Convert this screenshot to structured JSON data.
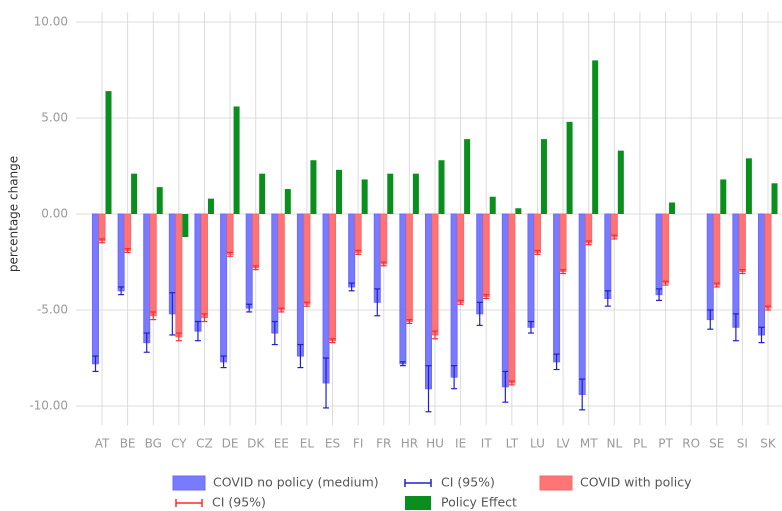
{
  "chart_data": {
    "type": "bar",
    "y_label": "percentage change",
    "categories": [
      "AT",
      "BE",
      "BG",
      "CY",
      "CZ",
      "DE",
      "DK",
      "EE",
      "EL",
      "ES",
      "FI",
      "FR",
      "HR",
      "HU",
      "IE",
      "IT",
      "LT",
      "LU",
      "LV",
      "MT",
      "NL",
      "PL",
      "PT",
      "RO",
      "SE",
      "SI",
      "SK"
    ],
    "series": [
      {
        "name": "COVID no policy (medium)",
        "color": "#6b6bff",
        "values": [
          -7.8,
          -4.0,
          -6.7,
          -5.2,
          -6.1,
          -7.7,
          -4.9,
          -6.2,
          -7.4,
          -8.8,
          -3.8,
          -4.6,
          -7.8,
          -9.1,
          -8.5,
          -5.2,
          -9.0,
          -5.9,
          -7.7,
          -9.4,
          -4.4,
          null,
          -4.2,
          null,
          -5.5,
          -5.9,
          -6.3
        ],
        "error_bars": {
          "name": "CI (95%)",
          "color": "#2020d0",
          "values": [
            0.4,
            0.2,
            0.5,
            1.1,
            0.5,
            0.3,
            0.2,
            0.6,
            0.6,
            1.3,
            0.2,
            0.7,
            0.1,
            1.2,
            0.6,
            0.6,
            0.8,
            0.3,
            0.4,
            0.8,
            0.4,
            null,
            0.3,
            null,
            0.5,
            0.7,
            0.4
          ]
        }
      },
      {
        "name": "COVID with policy",
        "color": "#ff6666",
        "values": [
          -1.4,
          -1.9,
          -5.3,
          -6.4,
          -5.4,
          -2.1,
          -2.8,
          -5.0,
          -4.7,
          -6.6,
          -2.0,
          -2.6,
          -5.6,
          -6.3,
          -4.6,
          -4.3,
          -8.8,
          -2.0,
          -3.0,
          -1.5,
          -1.2,
          null,
          -3.6,
          null,
          -3.7,
          -3.0,
          -4.9
        ],
        "error_bars": {
          "name": "CI (95%)",
          "color": "#ff2a2a",
          "values": [
            0.1,
            0.1,
            0.2,
            0.2,
            0.2,
            0.1,
            0.1,
            0.1,
            0.1,
            0.1,
            0.1,
            0.1,
            0.1,
            0.2,
            0.1,
            0.1,
            0.1,
            0.1,
            0.1,
            0.1,
            0.1,
            null,
            0.1,
            null,
            0.1,
            0.1,
            0.1
          ]
        }
      },
      {
        "name": "Policy Effect",
        "color": "#0a8f1e",
        "values": [
          6.4,
          2.1,
          1.4,
          -1.2,
          0.8,
          5.6,
          2.1,
          1.3,
          2.8,
          2.3,
          1.8,
          2.1,
          2.1,
          2.8,
          3.9,
          0.9,
          0.3,
          3.9,
          4.8,
          8.0,
          3.3,
          null,
          0.6,
          null,
          1.8,
          2.9,
          1.6
        ]
      }
    ],
    "ylim": [
      -11,
      10.5
    ],
    "yticks": [
      {
        "value": 10,
        "label": "10.00"
      },
      {
        "value": 5,
        "label": "5.00"
      },
      {
        "value": 0,
        "label": "0.00"
      },
      {
        "value": -5,
        "label": "-5.00"
      },
      {
        "value": -10,
        "label": "-10.00"
      }
    ],
    "grid": true
  }
}
